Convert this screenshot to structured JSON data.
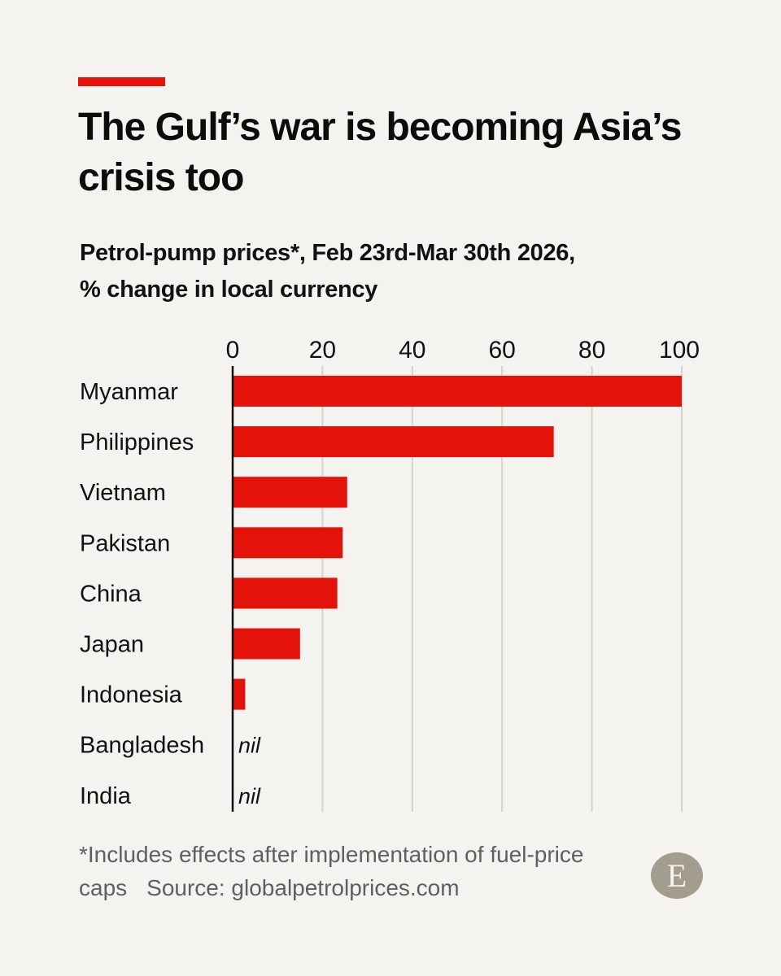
{
  "colors": {
    "background": "#f5f3ef",
    "accent": "#e3120b",
    "bar": "#e3120b",
    "gridline": "#d4d2cd",
    "text": "#111111",
    "footnote": "#5f5f5f",
    "logo": "#a29d8f"
  },
  "header": {
    "title": "The Gulf’s war is becoming Asia’s crisis too",
    "subtitle_line1": "Petrol-pump prices*, Feb 23rd-Mar 30th 2026,",
    "subtitle_line2": "% change in local currency"
  },
  "footer": {
    "footnote": "*Includes effects after implementation of fuel-price caps",
    "source": "Source: globalpetrolprices.com",
    "logo_letter": "E",
    "logo_icon": "economist-logo-icon"
  },
  "chart_data": {
    "type": "bar",
    "orientation": "horizontal",
    "title": "The Gulf’s war is becoming Asia’s crisis too",
    "subtitle": "Petrol-pump prices*, Feb 23rd-Mar 30th 2026, % change in local currency",
    "categories": [
      "Myanmar",
      "Philippines",
      "Vietnam",
      "Pakistan",
      "China",
      "Japan",
      "Indonesia",
      "Bangladesh",
      "India"
    ],
    "values": [
      100,
      71.5,
      25.5,
      24.5,
      23.3,
      15,
      2.8,
      0,
      0
    ],
    "value_labels": [
      "",
      "",
      "",
      "",
      "",
      "",
      "",
      "nil",
      "nil"
    ],
    "xlim": [
      0,
      100
    ],
    "xticks": [
      0,
      20,
      40,
      60,
      80,
      100
    ],
    "xaxis_position": "top",
    "grid": true,
    "legend": "none"
  }
}
